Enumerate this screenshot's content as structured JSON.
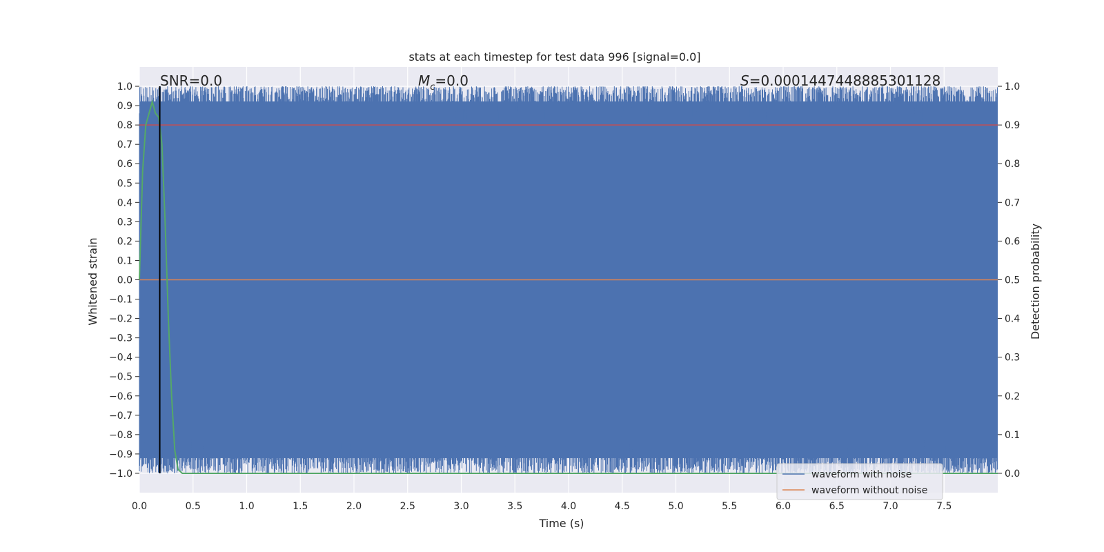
{
  "chart_data": {
    "type": "line",
    "title": "stats at each timestep for test data 996 [signal=0.0]",
    "xlabel": "Time (s)",
    "ylabel_left": "Whitened strain",
    "ylabel_right": "Detection probability",
    "xlim": [
      0.0,
      8.0
    ],
    "ylim_left": [
      -1.1,
      1.1
    ],
    "ylim_right": [
      -0.05,
      1.05
    ],
    "x_ticks": [
      "0.0",
      "0.5",
      "1.0",
      "1.5",
      "2.0",
      "2.5",
      "3.0",
      "3.5",
      "4.0",
      "4.5",
      "5.0",
      "5.5",
      "6.0",
      "6.5",
      "7.0",
      "7.5"
    ],
    "y_ticks_left": [
      "1.0",
      "0.9",
      "0.8",
      "0.7",
      "0.6",
      "0.5",
      "0.4",
      "0.3",
      "0.2",
      "0.1",
      "0.0",
      "−0.1",
      "−0.2",
      "−0.3",
      "−0.4",
      "−0.5",
      "−0.6",
      "−0.7",
      "−0.8",
      "−0.9",
      "−1.0"
    ],
    "y_ticks_right": [
      "1.0",
      "0.9",
      "0.8",
      "0.7",
      "0.6",
      "0.5",
      "0.4",
      "0.3",
      "0.2",
      "0.1",
      "0.0"
    ],
    "grid": true,
    "legend_position": "lower-right",
    "annotations": {
      "snr": "SNR=0.0",
      "mc_symbol": "M",
      "mc_sub": "c",
      "mc_value": "=0.0",
      "s_symbol": "S",
      "s_value": "=0.0001447448885301128"
    },
    "series": [
      {
        "name": "waveform with noise",
        "axis": "left",
        "color": "#4c72b0",
        "description_values": "dense noise filling approximately -1.0 to 1.0 across 0.0–8.0 s",
        "y_range": [
          -1.0,
          1.0
        ]
      },
      {
        "name": "waveform without noise",
        "axis": "left",
        "color": "#dd8452",
        "values_constant": 0.0
      },
      {
        "axis": "right",
        "color": "#55a868",
        "x": [
          0.0,
          0.03,
          0.06,
          0.09,
          0.12,
          0.15,
          0.18,
          0.21,
          0.24,
          0.27,
          0.3,
          0.33,
          0.36,
          0.4,
          8.0
        ],
        "values": [
          0.5,
          0.78,
          0.9,
          0.93,
          0.96,
          0.93,
          0.92,
          0.85,
          0.65,
          0.4,
          0.2,
          0.06,
          0.01,
          0.0,
          0.0
        ]
      },
      {
        "axis": "right",
        "color": "#c44e52",
        "values_constant": 0.9
      }
    ],
    "marker_line": {
      "x": 0.19,
      "color": "#000000"
    }
  }
}
